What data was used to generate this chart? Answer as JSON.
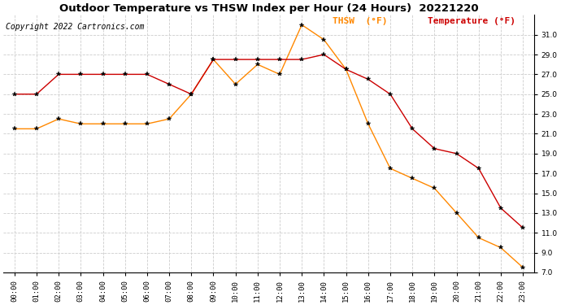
{
  "title": "Outdoor Temperature vs THSW Index per Hour (24 Hours)  20221220",
  "copyright": "Copyright 2022 Cartronics.com",
  "legend_thsw": "THSW  (°F)",
  "legend_temp": "Temperature (°F)",
  "hours": [
    "00:00",
    "01:00",
    "02:00",
    "03:00",
    "04:00",
    "05:00",
    "06:00",
    "07:00",
    "08:00",
    "09:00",
    "10:00",
    "11:00",
    "12:00",
    "13:00",
    "14:00",
    "15:00",
    "16:00",
    "17:00",
    "18:00",
    "19:00",
    "20:00",
    "21:00",
    "22:00",
    "23:00"
  ],
  "temperature": [
    25.0,
    25.0,
    27.0,
    27.0,
    27.0,
    27.0,
    27.0,
    26.0,
    25.0,
    28.5,
    28.5,
    28.5,
    28.5,
    28.5,
    29.0,
    27.5,
    26.5,
    25.0,
    21.5,
    19.5,
    19.0,
    17.5,
    13.5,
    11.5
  ],
  "thsw": [
    21.5,
    21.5,
    22.5,
    22.0,
    22.0,
    22.0,
    22.0,
    22.5,
    25.0,
    28.5,
    26.0,
    28.0,
    27.0,
    32.0,
    30.5,
    27.5,
    22.0,
    17.5,
    16.5,
    15.5,
    13.0,
    10.5,
    9.5,
    7.5
  ],
  "temp_color": "#cc0000",
  "thsw_color": "#ff8800",
  "ylim_min": 7.0,
  "ylim_max": 33.0,
  "yticks": [
    7.0,
    9.0,
    11.0,
    13.0,
    15.0,
    17.0,
    19.0,
    21.0,
    23.0,
    25.0,
    27.0,
    29.0,
    31.0
  ],
  "background_color": "#ffffff",
  "grid_color": "#cccccc",
  "title_fontsize": 9.5,
  "copyright_fontsize": 7,
  "legend_fontsize": 8,
  "tick_fontsize": 6.5
}
